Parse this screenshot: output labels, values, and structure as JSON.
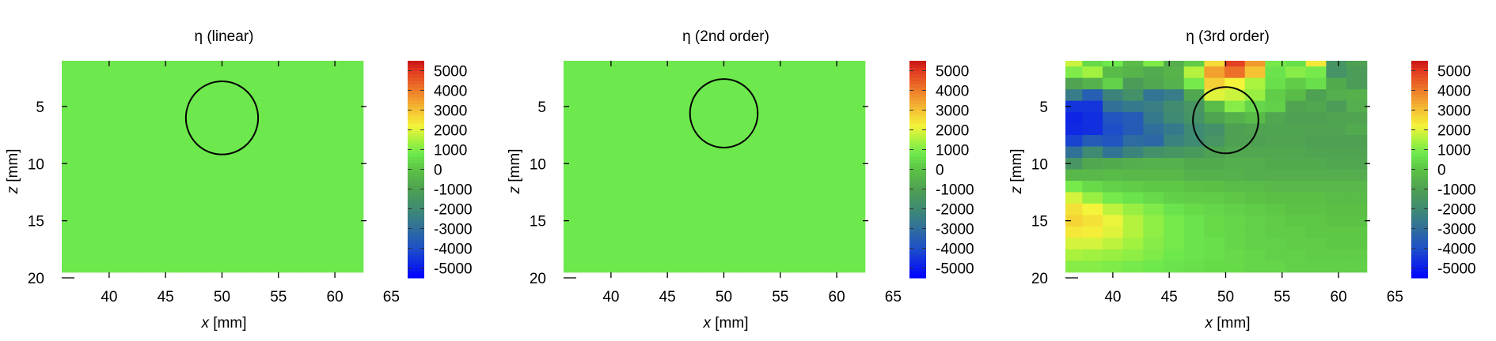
{
  "figure": {
    "panels": [
      {
        "title": "η (linear)",
        "xlabel_var": "x",
        "xlabel_unit": " [mm]",
        "ylabel_var": "z",
        "ylabel_unit": " [mm]"
      },
      {
        "title": "η (2nd order)",
        "xlabel_var": "x",
        "xlabel_unit": " [mm]",
        "ylabel_var": "z",
        "ylabel_unit": " [mm]"
      },
      {
        "title": "η (3rd order)",
        "xlabel_var": "x",
        "xlabel_unit": " [mm]",
        "ylabel_var": "z",
        "ylabel_unit": " [mm]"
      }
    ]
  },
  "chart_data": [
    {
      "type": "heatmap",
      "title": "η (linear)",
      "xlabel": "x [mm]",
      "ylabel": "z [mm]",
      "xticks": [
        "40",
        "45",
        "50",
        "55",
        "60",
        "65"
      ],
      "yticks": [
        "5",
        "10",
        "15",
        "20"
      ],
      "colorbar_ticks": [
        "5000",
        "4000",
        "3000",
        "2000",
        "1000",
        "0",
        "-1000",
        "-2000",
        "-3000",
        "-4000",
        "-5000"
      ],
      "xlim": [
        35.8,
        62.8
      ],
      "ylim": [
        1,
        20
      ],
      "clim": [
        -5500,
        5500
      ],
      "y_inverted": true,
      "x_grid": [
        36.4,
        38.2,
        40.0,
        41.8,
        43.6,
        45.4,
        47.2,
        49.0,
        50.8,
        52.6,
        54.4,
        56.2,
        58.0,
        59.8,
        61.6
      ],
      "z_grid": [
        1.0,
        2.0,
        3.0,
        4.0,
        5.0,
        6.0,
        7.0,
        8.0,
        9.0,
        10.0,
        11.0,
        12.0,
        13.0,
        14.0,
        15.0,
        16.0,
        17.0,
        18.0,
        19.0
      ],
      "values": [
        [
          800,
          800,
          800,
          800,
          800,
          800,
          800,
          800,
          800,
          800,
          800,
          800,
          800,
          800,
          800
        ],
        [
          800,
          800,
          800,
          800,
          800,
          800,
          800,
          800,
          800,
          800,
          800,
          800,
          800,
          800,
          800
        ],
        [
          800,
          800,
          800,
          800,
          800,
          800,
          800,
          800,
          800,
          800,
          800,
          800,
          800,
          800,
          800
        ],
        [
          800,
          800,
          800,
          800,
          800,
          800,
          800,
          800,
          800,
          800,
          800,
          800,
          800,
          800,
          800
        ],
        [
          800,
          800,
          800,
          800,
          800,
          800,
          800,
          800,
          800,
          800,
          800,
          800,
          800,
          800,
          800
        ],
        [
          800,
          800,
          800,
          800,
          800,
          800,
          800,
          800,
          800,
          800,
          800,
          800,
          800,
          800,
          800
        ],
        [
          800,
          800,
          800,
          800,
          800,
          800,
          800,
          800,
          800,
          800,
          800,
          800,
          800,
          800,
          800
        ],
        [
          800,
          800,
          800,
          800,
          800,
          800,
          800,
          800,
          800,
          800,
          800,
          800,
          800,
          800,
          800
        ],
        [
          800,
          800,
          800,
          800,
          800,
          800,
          800,
          800,
          800,
          800,
          800,
          800,
          800,
          800,
          800
        ],
        [
          800,
          800,
          800,
          800,
          800,
          800,
          800,
          800,
          800,
          800,
          800,
          800,
          800,
          800,
          800
        ],
        [
          800,
          800,
          800,
          800,
          800,
          800,
          800,
          800,
          800,
          800,
          800,
          800,
          800,
          800,
          800
        ],
        [
          800,
          800,
          800,
          800,
          800,
          800,
          800,
          800,
          800,
          800,
          800,
          800,
          800,
          800,
          800
        ],
        [
          800,
          800,
          800,
          800,
          800,
          800,
          800,
          800,
          800,
          800,
          800,
          800,
          800,
          800,
          800
        ],
        [
          800,
          800,
          800,
          800,
          800,
          800,
          800,
          800,
          800,
          800,
          800,
          800,
          800,
          800,
          800
        ],
        [
          800,
          800,
          800,
          800,
          800,
          800,
          800,
          800,
          800,
          800,
          800,
          800,
          800,
          800,
          800
        ],
        [
          800,
          800,
          800,
          800,
          800,
          800,
          800,
          800,
          800,
          800,
          800,
          800,
          800,
          800,
          800
        ],
        [
          800,
          800,
          800,
          800,
          800,
          800,
          800,
          800,
          800,
          800,
          800,
          800,
          800,
          800,
          800
        ],
        [
          800,
          800,
          800,
          800,
          800,
          800,
          800,
          800,
          800,
          800,
          800,
          800,
          800,
          800,
          800
        ],
        [
          800,
          800,
          800,
          800,
          800,
          800,
          800,
          800,
          800,
          800,
          800,
          800,
          800,
          800,
          800
        ]
      ],
      "circle": {
        "x": 50.0,
        "z": 6.0,
        "r": 3.2
      }
    },
    {
      "type": "heatmap",
      "title": "η (2nd order)",
      "xlabel": "x [mm]",
      "ylabel": "z [mm]",
      "xticks": [
        "40",
        "45",
        "50",
        "55",
        "60",
        "65"
      ],
      "yticks": [
        "5",
        "10",
        "15",
        "20"
      ],
      "colorbar_ticks": [
        "5000",
        "4000",
        "3000",
        "2000",
        "1000",
        "0",
        "-1000",
        "-2000",
        "-3000",
        "-4000",
        "-5000"
      ],
      "xlim": [
        35.8,
        62.8
      ],
      "ylim": [
        1,
        20
      ],
      "clim": [
        -5500,
        5500
      ],
      "y_inverted": true,
      "x_grid": [
        36.4,
        38.2,
        40.0,
        41.8,
        43.6,
        45.4,
        47.2,
        49.0,
        50.8,
        52.6,
        54.4,
        56.2,
        58.0,
        59.8,
        61.6
      ],
      "z_grid": [
        1.0,
        2.0,
        3.0,
        4.0,
        5.0,
        6.0,
        7.0,
        8.0,
        9.0,
        10.0,
        11.0,
        12.0,
        13.0,
        14.0,
        15.0,
        16.0,
        17.0,
        18.0,
        19.0
      ],
      "values": [
        [
          800,
          800,
          800,
          800,
          800,
          800,
          800,
          800,
          800,
          800,
          800,
          800,
          800,
          800,
          800
        ],
        [
          800,
          800,
          800,
          800,
          800,
          800,
          800,
          800,
          800,
          800,
          800,
          800,
          800,
          800,
          800
        ],
        [
          800,
          800,
          800,
          800,
          800,
          800,
          800,
          800,
          800,
          800,
          800,
          800,
          800,
          800,
          800
        ],
        [
          800,
          800,
          800,
          800,
          800,
          800,
          800,
          800,
          800,
          800,
          800,
          800,
          800,
          800,
          800
        ],
        [
          800,
          800,
          800,
          800,
          800,
          800,
          800,
          800,
          800,
          800,
          800,
          800,
          800,
          800,
          800
        ],
        [
          800,
          800,
          800,
          800,
          800,
          800,
          800,
          800,
          800,
          800,
          800,
          800,
          800,
          800,
          800
        ],
        [
          800,
          800,
          800,
          800,
          800,
          800,
          800,
          800,
          800,
          800,
          800,
          800,
          800,
          800,
          800
        ],
        [
          800,
          800,
          800,
          800,
          800,
          800,
          800,
          800,
          800,
          800,
          800,
          800,
          800,
          800,
          800
        ],
        [
          800,
          800,
          800,
          800,
          800,
          800,
          800,
          800,
          800,
          800,
          800,
          800,
          800,
          800,
          800
        ],
        [
          800,
          800,
          800,
          800,
          800,
          800,
          800,
          800,
          800,
          800,
          800,
          800,
          800,
          800,
          800
        ],
        [
          800,
          800,
          800,
          800,
          800,
          800,
          800,
          800,
          800,
          800,
          800,
          800,
          800,
          800,
          800
        ],
        [
          800,
          800,
          800,
          800,
          800,
          800,
          800,
          800,
          800,
          800,
          800,
          800,
          800,
          800,
          800
        ],
        [
          800,
          800,
          800,
          800,
          800,
          800,
          800,
          800,
          800,
          800,
          800,
          800,
          800,
          800,
          800
        ],
        [
          800,
          800,
          800,
          800,
          800,
          800,
          800,
          800,
          800,
          800,
          800,
          800,
          800,
          800,
          800
        ],
        [
          800,
          800,
          800,
          800,
          800,
          800,
          800,
          800,
          800,
          800,
          800,
          800,
          800,
          800,
          800
        ],
        [
          800,
          800,
          800,
          800,
          800,
          800,
          800,
          800,
          800,
          800,
          800,
          800,
          800,
          800,
          800
        ],
        [
          800,
          800,
          800,
          800,
          800,
          800,
          800,
          800,
          800,
          800,
          800,
          800,
          800,
          800,
          800
        ],
        [
          800,
          800,
          800,
          800,
          800,
          800,
          800,
          800,
          800,
          800,
          800,
          800,
          800,
          800,
          800
        ],
        [
          800,
          800,
          800,
          800,
          800,
          800,
          800,
          800,
          800,
          800,
          800,
          800,
          800,
          800,
          800
        ]
      ],
      "circle": {
        "x": 50.0,
        "z": 5.6,
        "r": 3.0
      }
    },
    {
      "type": "heatmap",
      "title": "η (3rd order)",
      "xlabel": "x [mm]",
      "ylabel": "z [mm]",
      "xticks": [
        "40",
        "45",
        "50",
        "55",
        "60",
        "65"
      ],
      "yticks": [
        "5",
        "10",
        "15",
        "20"
      ],
      "colorbar_ticks": [
        "5000",
        "4000",
        "3000",
        "2000",
        "1000",
        "0",
        "-1000",
        "-2000",
        "-3000",
        "-4000",
        "-5000"
      ],
      "xlim": [
        35.8,
        62.8
      ],
      "ylim": [
        1,
        20
      ],
      "clim": [
        -5500,
        5500
      ],
      "y_inverted": true,
      "x_grid": [
        36.4,
        38.2,
        40.0,
        41.8,
        43.6,
        45.4,
        47.2,
        49.0,
        50.8,
        52.6,
        54.4,
        56.2,
        58.0,
        59.8,
        61.6
      ],
      "z_grid": [
        1.0,
        2.0,
        3.0,
        4.0,
        5.0,
        6.0,
        7.0,
        8.0,
        9.0,
        10.0,
        11.0,
        12.0,
        13.0,
        14.0,
        15.0,
        16.0,
        17.0,
        18.0,
        19.0
      ],
      "values": [
        [
          1800,
          500,
          800,
          -200,
          1000,
          -600,
          200,
          2600,
          4900,
          3600,
          900,
          600,
          2400,
          -1500,
          -1000
        ],
        [
          1000,
          1400,
          -200,
          -400,
          -700,
          -400,
          1600,
          3500,
          4200,
          3000,
          700,
          1100,
          900,
          -1600,
          -1200
        ],
        [
          -900,
          -500,
          300,
          -1200,
          -800,
          -500,
          900,
          2800,
          2200,
          1500,
          600,
          200,
          600,
          -700,
          -1200
        ],
        [
          -2500,
          -3500,
          -2200,
          -1700,
          -2800,
          -2500,
          -800,
          2000,
          1800,
          1300,
          200,
          -200,
          -1000,
          -600,
          -500
        ],
        [
          -4500,
          -4500,
          -2900,
          -2600,
          -2400,
          -1900,
          -1500,
          -200,
          1100,
          400,
          300,
          -900,
          -800,
          -1200,
          -600
        ],
        [
          -4800,
          -4600,
          -3800,
          -3600,
          -2600,
          -2000,
          -1600,
          -900,
          -500,
          -200,
          -800,
          -1000,
          -1000,
          -900,
          -900
        ],
        [
          -4700,
          -4600,
          -4000,
          -3600,
          -3000,
          -2600,
          -2000,
          -1700,
          -1000,
          -900,
          -900,
          -900,
          -900,
          -900,
          -700
        ],
        [
          -4200,
          -3600,
          -3800,
          -3100,
          -3200,
          -2300,
          -2000,
          -1500,
          -1000,
          -1000,
          -900,
          -900,
          -1000,
          -1000,
          -1000
        ],
        [
          -2900,
          -2000,
          -2800,
          -2200,
          -1700,
          -1500,
          -1300,
          -1000,
          -800,
          -800,
          -800,
          -800,
          -900,
          -900,
          -900
        ],
        [
          -1500,
          -800,
          -700,
          -600,
          -500,
          -500,
          -700,
          -700,
          -600,
          -600,
          -700,
          -700,
          -700,
          -800,
          -800
        ],
        [
          -300,
          -300,
          -200,
          -300,
          -300,
          -300,
          -500,
          -500,
          -500,
          -600,
          -600,
          -600,
          -600,
          -600,
          -600
        ],
        [
          900,
          500,
          300,
          200,
          100,
          100,
          0,
          -100,
          -200,
          -200,
          -300,
          -300,
          -300,
          -300,
          -300
        ],
        [
          1900,
          1300,
          900,
          700,
          500,
          300,
          200,
          200,
          100,
          0,
          -100,
          -100,
          -100,
          -200,
          -200
        ],
        [
          2500,
          2200,
          1700,
          1300,
          1000,
          700,
          500,
          400,
          300,
          200,
          100,
          0,
          0,
          -100,
          -100
        ],
        [
          2700,
          2500,
          2100,
          1600,
          1200,
          900,
          700,
          500,
          400,
          300,
          200,
          100,
          100,
          0,
          0
        ],
        [
          2400,
          2300,
          2000,
          1600,
          1200,
          900,
          700,
          500,
          400,
          300,
          200,
          200,
          100,
          100,
          100
        ],
        [
          1900,
          1900,
          1700,
          1400,
          1100,
          900,
          700,
          600,
          400,
          300,
          300,
          200,
          200,
          100,
          100
        ],
        [
          1500,
          1400,
          1300,
          1200,
          1000,
          800,
          700,
          600,
          500,
          400,
          300,
          300,
          200,
          200,
          200
        ],
        [
          1100,
          1100,
          1000,
          900,
          800,
          700,
          600,
          500,
          500,
          400,
          400,
          300,
          300,
          300,
          300
        ]
      ],
      "circle": {
        "x": 50.0,
        "z": 6.2,
        "r": 2.9
      }
    }
  ],
  "colormap": {
    "stops": [
      {
        "v": -5500,
        "c": "#0000ff"
      },
      {
        "v": -4000,
        "c": "#1d4fc9"
      },
      {
        "v": -3000,
        "c": "#2f6e9c"
      },
      {
        "v": -2000,
        "c": "#3f8a73"
      },
      {
        "v": -1000,
        "c": "#4ea052"
      },
      {
        "v": 0,
        "c": "#5cc245"
      },
      {
        "v": 800,
        "c": "#6de84d"
      },
      {
        "v": 1500,
        "c": "#a9f23e"
      },
      {
        "v": 2200,
        "c": "#f4f43a"
      },
      {
        "v": 3000,
        "c": "#f5c234"
      },
      {
        "v": 4000,
        "c": "#ee7d2a"
      },
      {
        "v": 5000,
        "c": "#e23a20"
      },
      {
        "v": 5500,
        "c": "#c81414"
      }
    ]
  }
}
